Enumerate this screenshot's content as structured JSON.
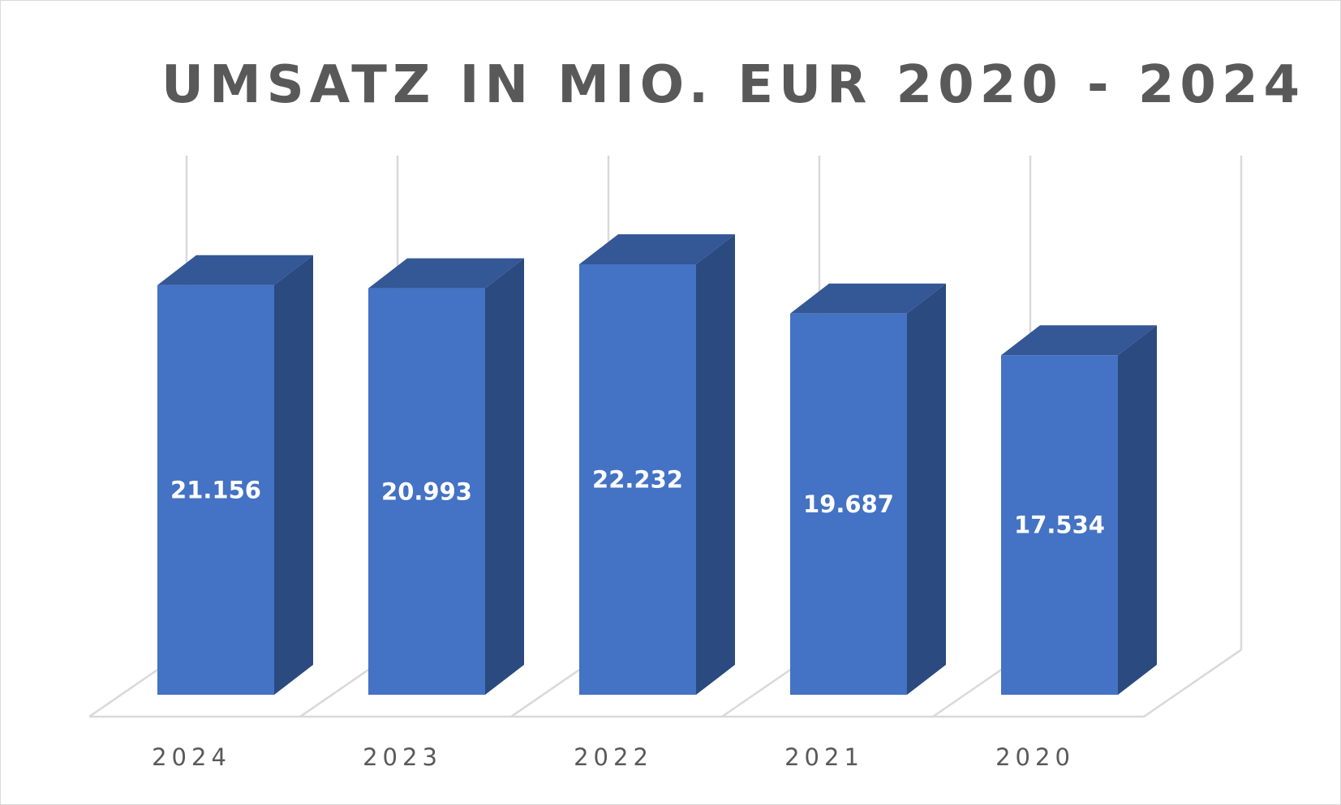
{
  "chart_data": {
    "type": "bar",
    "title": "UMSATZ IN MIO. EUR 2020 - 2024",
    "categories": [
      "2024",
      "2023",
      "2022",
      "2021",
      "2020"
    ],
    "values": [
      21156,
      20993,
      22232,
      19687,
      17534
    ],
    "data_labels": [
      "21.156",
      "20.993",
      "22.232",
      "19.687",
      "17.534"
    ],
    "ylim": [
      0,
      25000
    ],
    "gridlines": "vertical",
    "legend": "none",
    "colors": {
      "front": "#4472c4",
      "side": "#2a4a80",
      "top": "#345795",
      "text": "#595959",
      "grid": "#d9d9d9"
    }
  }
}
